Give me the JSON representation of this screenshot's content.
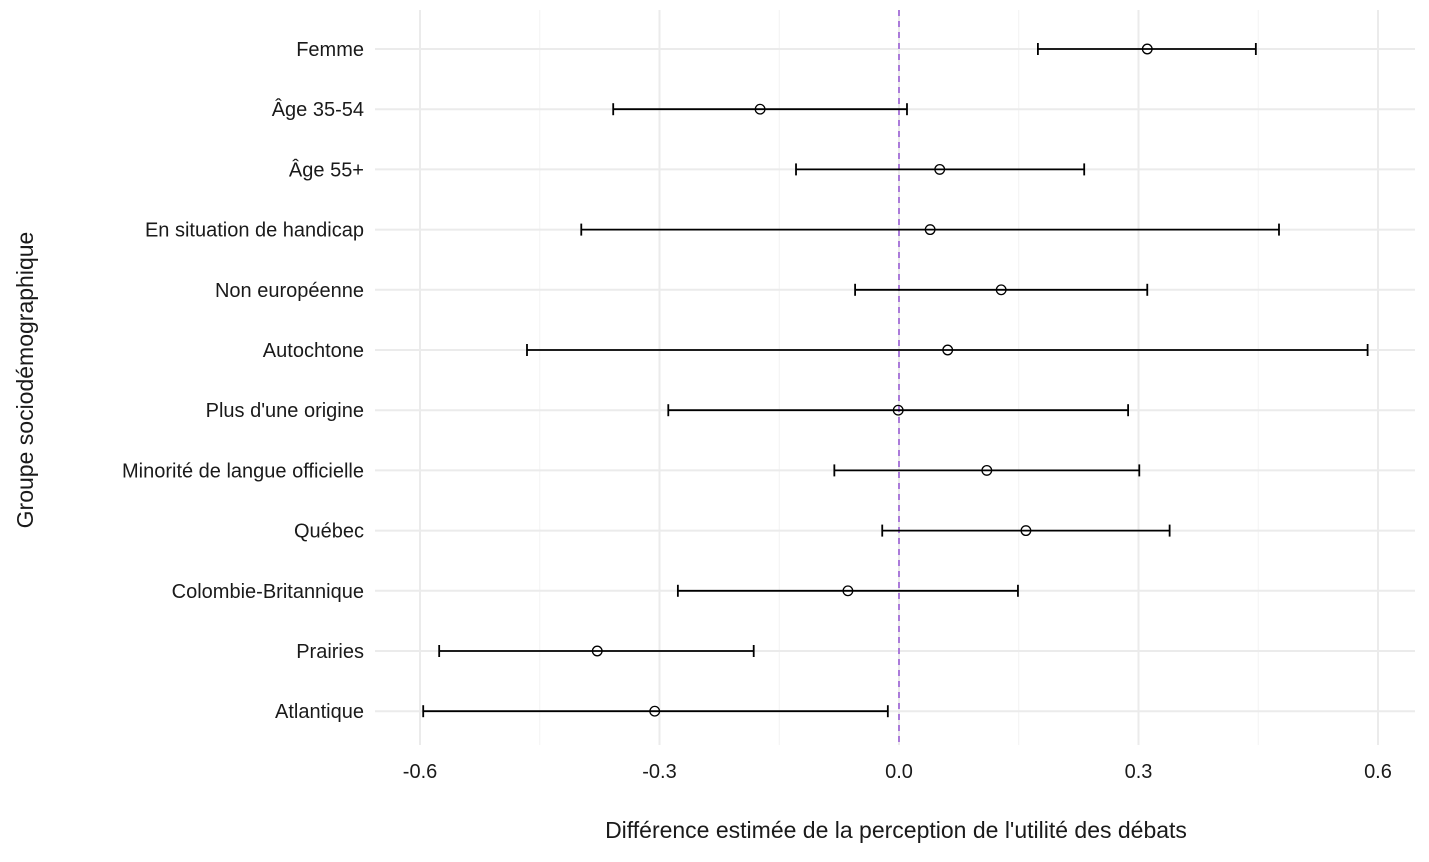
{
  "chart_data": {
    "type": "scatter",
    "subtype": "coefficient-plot-with-error-bars",
    "title": "",
    "xlabel": "Différence estimée de la perception de l'utilité des débats",
    "ylabel": "Groupe sociodémographique",
    "xlim": [
      -0.65,
      0.65
    ],
    "xticks": [
      -0.6,
      -0.3,
      0.0,
      0.3,
      0.6
    ],
    "xtick_labels": [
      "-0.6",
      "-0.3",
      "0.0",
      "0.3",
      "0.6"
    ],
    "grid": true,
    "reference_line": {
      "x": 0.0,
      "style": "dashed",
      "color": "#9b5fd6"
    },
    "point_color": "#000000",
    "categories": [
      "Femme",
      "Âge 35-54",
      "Âge 55+",
      "En situation de handicap",
      "Non européenne",
      "Autochtone",
      "Plus d'une origine",
      "Minorité de langue officielle",
      "Québec",
      "Colombie-Britannique",
      "Prairies",
      "Atlantique"
    ],
    "estimates": [
      0.311,
      -0.174,
      0.051,
      0.039,
      0.128,
      0.061,
      -0.001,
      0.11,
      0.159,
      -0.064,
      -0.378,
      -0.306
    ],
    "ci_low": [
      0.174,
      -0.358,
      -0.129,
      -0.398,
      -0.055,
      -0.466,
      -0.289,
      -0.081,
      -0.021,
      -0.277,
      -0.576,
      -0.596
    ],
    "ci_high": [
      0.447,
      0.01,
      0.232,
      0.476,
      0.311,
      0.587,
      0.287,
      0.301,
      0.339,
      0.149,
      -0.182,
      -0.014
    ]
  }
}
